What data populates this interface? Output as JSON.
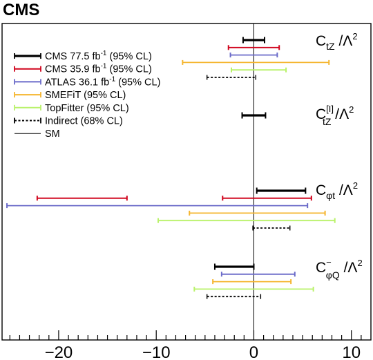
{
  "chart_data": {
    "type": "interval",
    "title": "CMS",
    "xlabel": "",
    "ylabel": "",
    "xlim": [
      -25.8,
      12.0
    ],
    "xticks": [
      "−20",
      "−10",
      "0",
      "10"
    ],
    "xtick_values": [
      -20,
      -10,
      0,
      10
    ],
    "grid": false,
    "legend_position": "top-left",
    "legend": [
      {
        "id": "cms775",
        "label": "CMS 77.5 fb",
        "sup": "-1",
        "suffix": " (95% CL)",
        "color": "#000000",
        "dashed": false
      },
      {
        "id": "cms359",
        "label": "CMS 35.9 fb",
        "sup": "-1",
        "suffix": " (95% CL)",
        "color": "#d0021b",
        "dashed": false
      },
      {
        "id": "atlas",
        "label": "ATLAS 36.1 fb",
        "sup": "-1",
        "suffix": " (95% CL)",
        "color": "#6b6bc9",
        "dashed": false
      },
      {
        "id": "smefit",
        "label": "SMEFiT (95% CL)",
        "sup": "",
        "suffix": "",
        "color": "#f5b52e",
        "dashed": false
      },
      {
        "id": "topfitter",
        "label": "TopFitter (95% CL)",
        "sup": "",
        "suffix": "",
        "color": "#b9f26a",
        "dashed": false
      },
      {
        "id": "indirect",
        "label": "Indirect (68% CL)",
        "sup": "",
        "suffix": "",
        "color": "#000000",
        "dashed": true
      },
      {
        "id": "sm",
        "label": "SM",
        "sup": "",
        "suffix": "",
        "color": "#000000",
        "dashed": false,
        "line": true
      }
    ],
    "groups": [
      {
        "name": "C_tZ / Λ^2",
        "label": {
          "base": "C",
          "sub": "tZ",
          "supmark": "",
          "tail": " /Λ",
          "pow": "2"
        },
        "intervals": [
          {
            "series": "cms775",
            "ranges": [
              [
                -1.1,
                1.1
              ]
            ]
          },
          {
            "series": "cms359",
            "ranges": [
              [
                -2.6,
                2.6
              ]
            ]
          },
          {
            "series": "atlas",
            "ranges": [
              [
                -2.4,
                2.4
              ]
            ]
          },
          {
            "series": "smefit",
            "ranges": [
              [
                -7.3,
                7.7
              ]
            ]
          },
          {
            "series": "topfitter",
            "ranges": [
              [
                -2.3,
                3.3
              ]
            ]
          },
          {
            "series": "indirect",
            "ranges": [
              [
                -4.8,
                0.2
              ]
            ]
          }
        ]
      },
      {
        "name": "C_tZ^[I] / Λ^2",
        "label": {
          "base": "C",
          "sub": "tZ",
          "supmark": "[I]",
          "tail": " /Λ",
          "pow": "2"
        },
        "intervals": [
          {
            "series": "cms775",
            "ranges": [
              [
                -1.2,
                1.2
              ]
            ]
          }
        ]
      },
      {
        "name": "C_φt / Λ^2",
        "label": {
          "base": "C",
          "sub": "φt",
          "supmark": "",
          "tail": " /Λ",
          "pow": "2"
        },
        "intervals": [
          {
            "series": "cms775",
            "ranges": [
              [
                0.3,
                5.3
              ]
            ]
          },
          {
            "series": "cms359",
            "ranges": [
              [
                -22.2,
                -13.0
              ],
              [
                -3.2,
                5.9
              ]
            ]
          },
          {
            "series": "atlas",
            "ranges": [
              [
                -25.3,
                5.5
              ]
            ]
          },
          {
            "series": "smefit",
            "ranges": [
              [
                -6.6,
                7.3
              ]
            ]
          },
          {
            "series": "topfitter",
            "ranges": [
              [
                -9.8,
                8.3
              ]
            ]
          },
          {
            "series": "indirect",
            "ranges": [
              [
                -0.1,
                3.7
              ]
            ]
          }
        ]
      },
      {
        "name": "C_φQ^- / Λ^2",
        "label": {
          "base": "C",
          "sub": "φQ",
          "supmark": "−",
          "tail": " /Λ",
          "pow": "2"
        },
        "intervals": [
          {
            "series": "cms775",
            "ranges": [
              [
                -4.0,
                0.0
              ]
            ]
          },
          {
            "series": "atlas",
            "ranges": [
              [
                -3.3,
                4.2
              ]
            ]
          },
          {
            "series": "smefit",
            "ranges": [
              [
                -4.2,
                3.8
              ]
            ]
          },
          {
            "series": "topfitter",
            "ranges": [
              [
                -6.1,
                6.1
              ]
            ]
          },
          {
            "series": "indirect",
            "ranges": [
              [
                -4.8,
                0.7
              ]
            ]
          }
        ]
      }
    ]
  }
}
